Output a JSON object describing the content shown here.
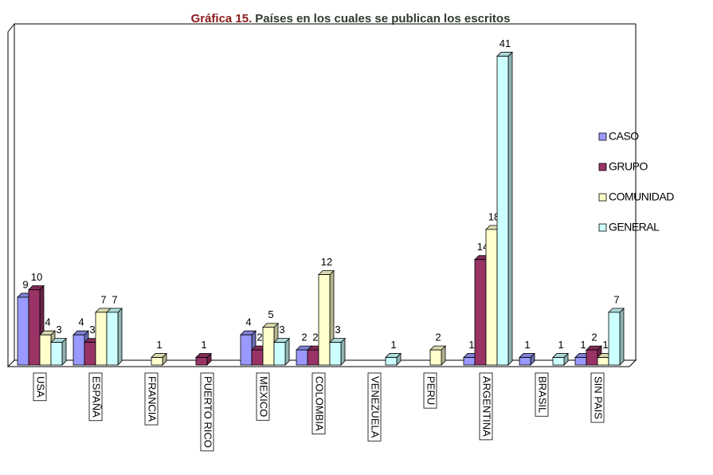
{
  "chart_data": {
    "type": "bar3d",
    "title_number": "Gráfica 15.",
    "title": "Países en los cuales se publican los escritos",
    "categories": [
      "USA",
      "ESPAÑA",
      "FRANCIA",
      "PUERTO RICO",
      "MEXICO",
      "COLOMBIA",
      "VENEZUELA",
      "PERU",
      "ARGENTINA",
      "BRASIL",
      "SIN PAIS"
    ],
    "series": [
      {
        "name": "CASO",
        "color": "#9999ff",
        "values": [
          9,
          4,
          null,
          null,
          4,
          2,
          null,
          null,
          1,
          1,
          1
        ]
      },
      {
        "name": "GRUPO",
        "color": "#993366",
        "values": [
          10,
          3,
          null,
          1,
          2,
          2,
          null,
          null,
          14,
          null,
          2
        ]
      },
      {
        "name": "COMUNIDAD",
        "color": "#ffffcc",
        "values": [
          4,
          7,
          1,
          null,
          5,
          12,
          null,
          2,
          18,
          null,
          1
        ]
      },
      {
        "name": "GENERAL",
        "color": "#ccffff",
        "values": [
          3,
          7,
          null,
          null,
          3,
          3,
          1,
          null,
          41,
          1,
          7
        ]
      }
    ],
    "legend": "right"
  }
}
